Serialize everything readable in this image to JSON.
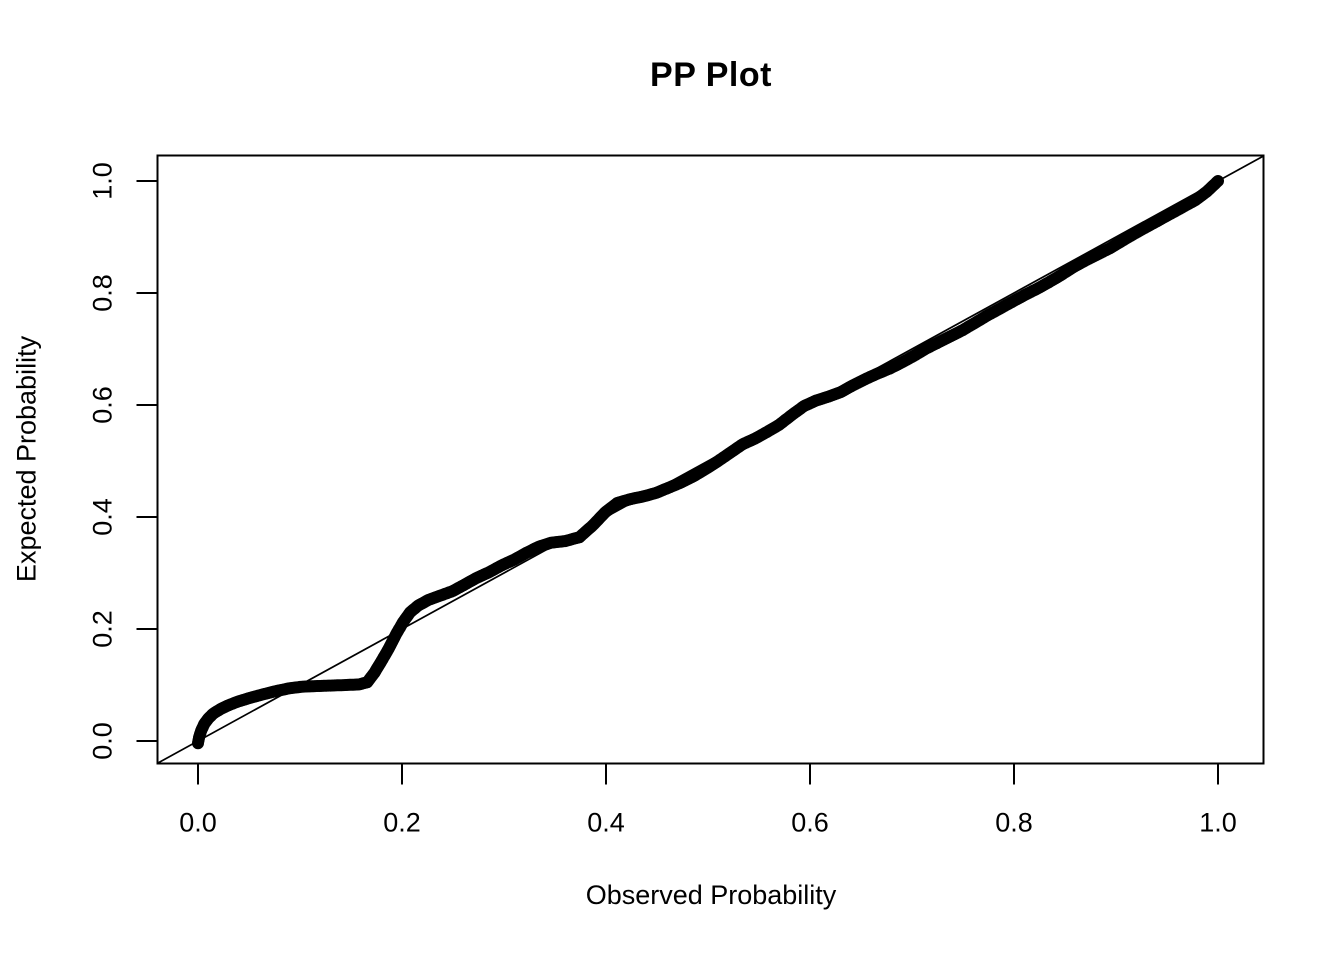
{
  "figure": {
    "background_color": "#ffffff",
    "foreground_color": "#000000"
  },
  "chart_data": {
    "type": "scatter",
    "title": "PP Plot",
    "xlabel": "Observed Probability",
    "ylabel": "Expected Probability",
    "xlim": [
      0,
      1
    ],
    "ylim": [
      0,
      1
    ],
    "grid": "off",
    "legend": "none",
    "marker": "open-circle",
    "color": "#000000",
    "x_ticks": [
      0.0,
      0.2,
      0.4,
      0.6,
      0.8,
      1.0
    ],
    "y_ticks": [
      0.0,
      0.2,
      0.4,
      0.6,
      0.8,
      1.0
    ],
    "x_tick_labels": [
      "0.0",
      "0.2",
      "0.4",
      "0.6",
      "0.8",
      "1.0"
    ],
    "y_tick_labels": [
      "0.0",
      "0.2",
      "0.4",
      "0.6",
      "0.8",
      "1.0"
    ],
    "reference_line": {
      "type": "identity",
      "from": [
        0,
        0
      ],
      "to": [
        1,
        1
      ]
    },
    "points": [
      [
        0.0,
        -0.004
      ],
      [
        0.001,
        0.006
      ],
      [
        0.003,
        0.018
      ],
      [
        0.006,
        0.03
      ],
      [
        0.01,
        0.04
      ],
      [
        0.015,
        0.049
      ],
      [
        0.022,
        0.057
      ],
      [
        0.03,
        0.064
      ],
      [
        0.04,
        0.071
      ],
      [
        0.051,
        0.077
      ],
      [
        0.063,
        0.083
      ],
      [
        0.076,
        0.089
      ],
      [
        0.089,
        0.094
      ],
      [
        0.102,
        0.097
      ],
      [
        0.115,
        0.098
      ],
      [
        0.13,
        0.099
      ],
      [
        0.145,
        0.1
      ],
      [
        0.158,
        0.101
      ],
      [
        0.166,
        0.105
      ],
      [
        0.173,
        0.122
      ],
      [
        0.18,
        0.143
      ],
      [
        0.187,
        0.165
      ],
      [
        0.194,
        0.19
      ],
      [
        0.201,
        0.212
      ],
      [
        0.208,
        0.23
      ],
      [
        0.216,
        0.242
      ],
      [
        0.226,
        0.252
      ],
      [
        0.238,
        0.26
      ],
      [
        0.25,
        0.268
      ],
      [
        0.262,
        0.28
      ],
      [
        0.274,
        0.292
      ],
      [
        0.286,
        0.302
      ],
      [
        0.298,
        0.314
      ],
      [
        0.31,
        0.324
      ],
      [
        0.322,
        0.336
      ],
      [
        0.334,
        0.347
      ],
      [
        0.346,
        0.354
      ],
      [
        0.36,
        0.357
      ],
      [
        0.374,
        0.364
      ],
      [
        0.387,
        0.385
      ],
      [
        0.399,
        0.408
      ],
      [
        0.411,
        0.425
      ],
      [
        0.424,
        0.432
      ],
      [
        0.437,
        0.437
      ],
      [
        0.449,
        0.443
      ],
      [
        0.461,
        0.452
      ],
      [
        0.474,
        0.462
      ],
      [
        0.486,
        0.473
      ],
      [
        0.498,
        0.486
      ],
      [
        0.51,
        0.5
      ],
      [
        0.522,
        0.515
      ],
      [
        0.534,
        0.53
      ],
      [
        0.546,
        0.54
      ],
      [
        0.558,
        0.552
      ],
      [
        0.57,
        0.565
      ],
      [
        0.582,
        0.582
      ],
      [
        0.594,
        0.598
      ],
      [
        0.606,
        0.608
      ],
      [
        0.618,
        0.615
      ],
      [
        0.63,
        0.623
      ],
      [
        0.642,
        0.635
      ],
      [
        0.654,
        0.646
      ],
      [
        0.666,
        0.656
      ],
      [
        0.678,
        0.665
      ],
      [
        0.69,
        0.676
      ],
      [
        0.702,
        0.688
      ],
      [
        0.714,
        0.701
      ],
      [
        0.726,
        0.712
      ],
      [
        0.738,
        0.723
      ],
      [
        0.75,
        0.734
      ],
      [
        0.762,
        0.747
      ],
      [
        0.774,
        0.76
      ],
      [
        0.786,
        0.772
      ],
      [
        0.798,
        0.784
      ],
      [
        0.81,
        0.796
      ],
      [
        0.822,
        0.807
      ],
      [
        0.834,
        0.819
      ],
      [
        0.846,
        0.832
      ],
      [
        0.858,
        0.846
      ],
      [
        0.87,
        0.858
      ],
      [
        0.882,
        0.869
      ],
      [
        0.894,
        0.88
      ],
      [
        0.906,
        0.893
      ],
      [
        0.918,
        0.906
      ],
      [
        0.93,
        0.918
      ],
      [
        0.942,
        0.93
      ],
      [
        0.954,
        0.942
      ],
      [
        0.966,
        0.954
      ],
      [
        0.978,
        0.966
      ],
      [
        0.989,
        0.981
      ],
      [
        1.0,
        1.0
      ]
    ]
  }
}
